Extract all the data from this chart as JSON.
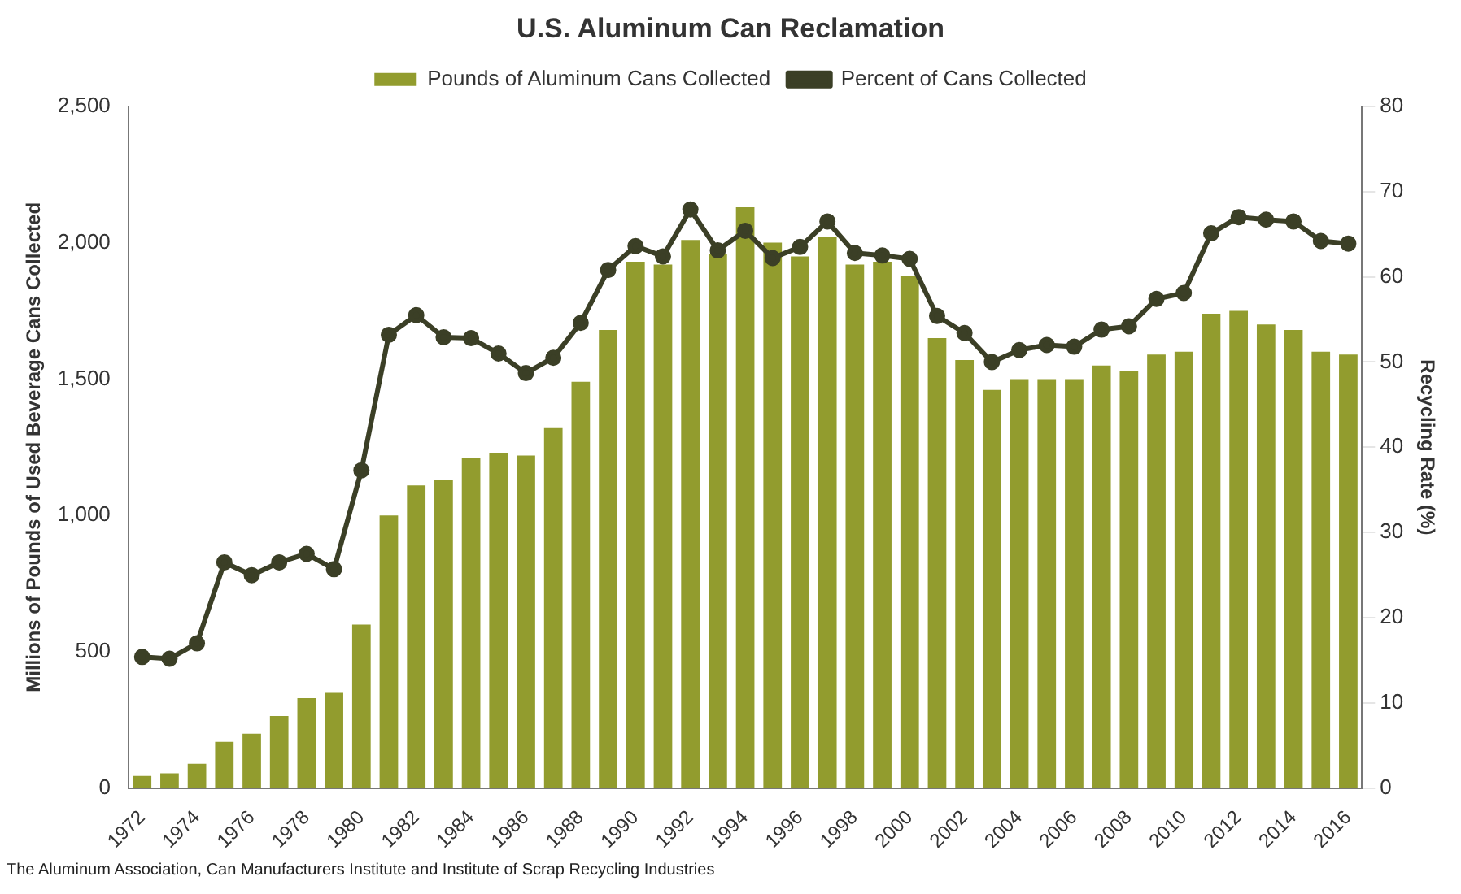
{
  "chart_data": {
    "type": "bar",
    "title": "U.S. Aluminum Can Reclamation",
    "categories": [
      "1972",
      null,
      "1974",
      null,
      "1976",
      null,
      "1978",
      null,
      "1980",
      null,
      "1982",
      null,
      "1984",
      null,
      "1986",
      null,
      "1988",
      null,
      "1990",
      null,
      "1992",
      null,
      "1994",
      null,
      "1996",
      null,
      "1998",
      null,
      "2000",
      null,
      "2002",
      null,
      "2004",
      null,
      "2006",
      null,
      "2008",
      null,
      "2010",
      null,
      "2012",
      null,
      "2014",
      null,
      "2016"
    ],
    "series": [
      {
        "name": "Pounds of Aluminum Cans Collected",
        "color": "#929c2e",
        "values": [
          45,
          55,
          90,
          170,
          200,
          265,
          330,
          350,
          600,
          1000,
          1110,
          1130,
          1210,
          1230,
          1220,
          1320,
          1490,
          1680,
          1930,
          1920,
          2010,
          1960,
          2130,
          2000,
          1950,
          2020,
          1920,
          1930,
          1880,
          1650,
          1570,
          1460,
          1500,
          1500,
          1500,
          1550,
          1530,
          1590,
          1600,
          1740,
          1750,
          1700,
          1680,
          1600,
          1590
        ]
      },
      {
        "name": "Percent of Cans Collected",
        "type": "line",
        "axis": "y2",
        "color": "#3b3f26",
        "values": [
          15.4,
          15.2,
          17,
          26.5,
          25,
          26.5,
          27.5,
          25.7,
          37.3,
          53.2,
          55.5,
          52.9,
          52.8,
          51,
          48.7,
          50.5,
          54.6,
          60.8,
          63.6,
          62.4,
          67.9,
          63.1,
          65.4,
          62.2,
          63.5,
          66.5,
          62.8,
          62.5,
          62.1,
          55.4,
          53.4,
          50,
          51.4,
          52,
          51.8,
          53.8,
          54.2,
          57.4,
          58.1,
          65.1,
          67,
          66.7,
          66.5,
          64.2,
          63.9
        ]
      }
    ],
    "ylabel": "Millions of Pounds of Used Beverage Cans Collected",
    "y2label": "Recycling Rate (%)",
    "ylim": [
      0,
      2500
    ],
    "yticks": [
      0,
      500,
      {
        "value": 1000,
        "label": "1,000"
      },
      {
        "value": 1500,
        "label": "1,500"
      },
      {
        "value": 2000,
        "label": "2,000"
      },
      {
        "value": 2500,
        "label": "2,500"
      }
    ],
    "y2lim": [
      0,
      80
    ],
    "y2ticks": [
      0,
      10,
      20,
      30,
      40,
      50,
      60,
      70,
      80
    ],
    "legend": "top",
    "grid": false,
    "marker": "circle",
    "annotations": [
      "The Aluminum Association, Can Manufacturers Institute and Institute of Scrap Recycling Industries"
    ]
  }
}
